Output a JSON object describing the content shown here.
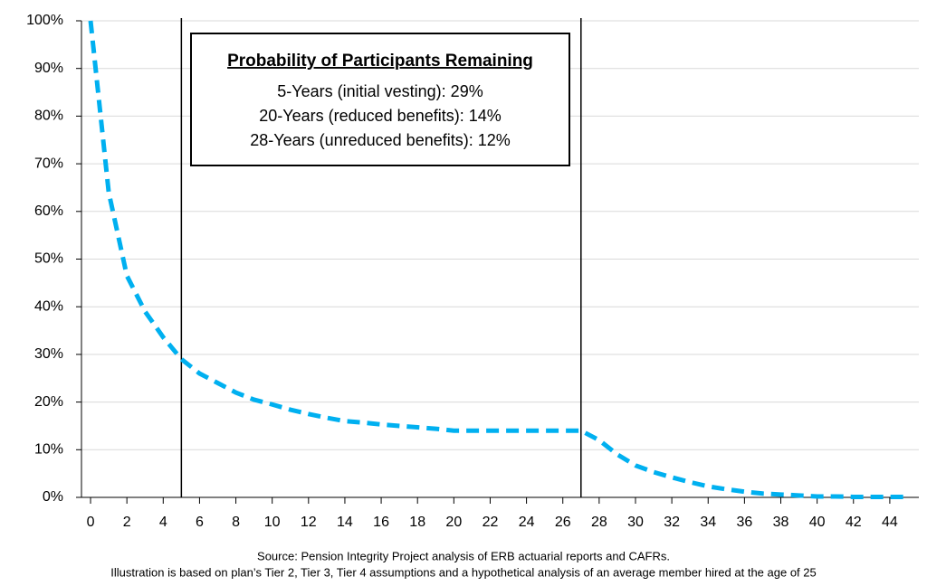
{
  "chart_data": {
    "type": "line",
    "x": [
      0,
      1,
      2,
      3,
      4,
      5,
      6,
      7,
      8,
      9,
      10,
      11,
      12,
      13,
      14,
      15,
      16,
      17,
      18,
      19,
      20,
      21,
      22,
      23,
      24,
      25,
      26,
      27,
      28,
      29,
      30,
      31,
      32,
      33,
      34,
      35,
      36,
      37,
      38,
      39,
      40,
      41,
      42,
      43,
      44,
      45
    ],
    "series": [
      {
        "name": "Probability of remaining",
        "color": "#00b0f0",
        "values": [
          100,
          64,
          46.5,
          39,
          33.6,
          29,
          26,
          24,
          22,
          20.5,
          19.5,
          18.4,
          17.5,
          16.7,
          16,
          15.7,
          15.3,
          15,
          14.7,
          14.4,
          14,
          14,
          14,
          14,
          14,
          14,
          14,
          14,
          12,
          9,
          6.7,
          5.3,
          4.2,
          3.2,
          2.3,
          1.7,
          1.2,
          0.8,
          0.6,
          0.4,
          0.2,
          0.2,
          0.1,
          0.1,
          0.1,
          0.1
        ]
      }
    ],
    "xlim": [
      -0.5,
      45.6
    ],
    "xticks": [
      0,
      2,
      4,
      6,
      8,
      10,
      12,
      14,
      16,
      18,
      20,
      22,
      24,
      26,
      28,
      30,
      32,
      34,
      36,
      38,
      40,
      42,
      44
    ],
    "ylim": [
      0,
      100
    ],
    "yticks": [
      {
        "value": 0,
        "label": "0%"
      },
      {
        "value": 10,
        "label": "10%"
      },
      {
        "value": 20,
        "label": "20%"
      },
      {
        "value": 30,
        "label": "30%"
      },
      {
        "value": 40,
        "label": "40%"
      },
      {
        "value": 50,
        "label": "50%"
      },
      {
        "value": 60,
        "label": "60%"
      },
      {
        "value": 70,
        "label": "70%"
      },
      {
        "value": 80,
        "label": "80%"
      },
      {
        "value": 90,
        "label": "90%"
      },
      {
        "value": 100,
        "label": "100%"
      }
    ],
    "grid": true,
    "vlines": [
      5,
      27
    ],
    "annotation": {
      "title": "Probability of Participants Remaining",
      "lines": [
        "5-Years (initial vesting): 29%",
        "20-Years (reduced benefits): 14%",
        "28-Years (unreduced benefits): 12%"
      ]
    },
    "source": "Source: Pension Integrity Project analysis of ERB actuarial reports and CAFRs.",
    "note": "Illustration is based on plan’s Tier 2, Tier 3, Tier 4 assumptions and a hypothetical analysis of an average member hired at the age of 25"
  }
}
